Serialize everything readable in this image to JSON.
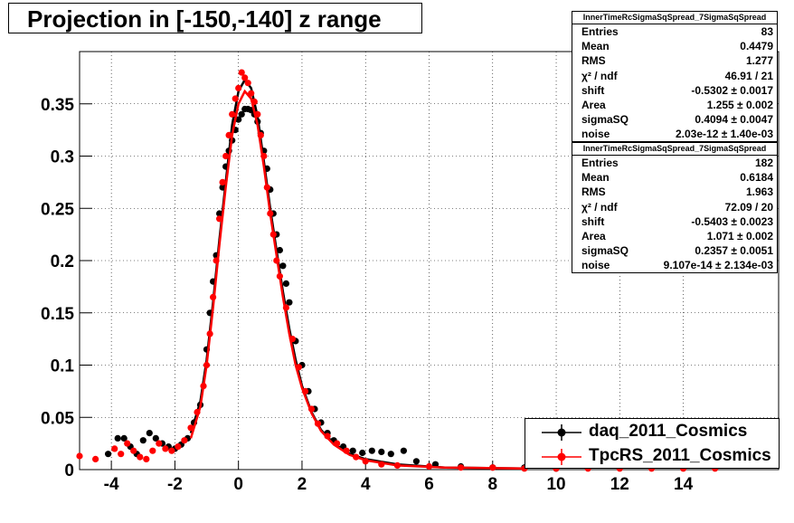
{
  "title": "Projection in [-150,-140] z range",
  "chart_data": {
    "type": "scatter",
    "title": "Projection in [-150,-140] z range",
    "xlabel": "",
    "ylabel": "",
    "xlim": [
      -5,
      17
    ],
    "ylim": [
      0,
      0.4
    ],
    "x_ticks": [
      -4,
      -2,
      0,
      2,
      4,
      6,
      8,
      10,
      12,
      14
    ],
    "x_tick_labels": [
      "-4",
      "-2",
      "0",
      "2",
      "4",
      "6",
      "8",
      "10",
      "12",
      "14"
    ],
    "y_ticks": [
      0.05,
      0.1,
      0.15,
      0.2,
      0.25,
      0.3,
      0.35
    ],
    "y_tick_labels": [
      "0.05",
      "0.1",
      "0.15",
      "0.2",
      "0.25",
      "0.3",
      "0.35"
    ],
    "y_zero_label": "0",
    "grid": true,
    "series": [
      {
        "name": "daq_2011_Cosmics",
        "color": "#000000",
        "points": [
          [
            -4.1,
            0.015
          ],
          [
            -3.8,
            0.03
          ],
          [
            -3.6,
            0.03
          ],
          [
            -3.4,
            0.022
          ],
          [
            -3.2,
            0.015
          ],
          [
            -3.0,
            0.028
          ],
          [
            -2.8,
            0.035
          ],
          [
            -2.6,
            0.03
          ],
          [
            -2.4,
            0.025
          ],
          [
            -2.2,
            0.022
          ],
          [
            -2.0,
            0.02
          ],
          [
            -1.8,
            0.024
          ],
          [
            -1.6,
            0.03
          ],
          [
            -1.4,
            0.045
          ],
          [
            -1.2,
            0.062
          ],
          [
            -1.0,
            0.115
          ],
          [
            -0.9,
            0.15
          ],
          [
            -0.8,
            0.18
          ],
          [
            -0.7,
            0.205
          ],
          [
            -0.6,
            0.245
          ],
          [
            -0.5,
            0.27
          ],
          [
            -0.4,
            0.29
          ],
          [
            -0.3,
            0.305
          ],
          [
            -0.2,
            0.315
          ],
          [
            -0.1,
            0.325
          ],
          [
            0.0,
            0.335
          ],
          [
            0.1,
            0.34
          ],
          [
            0.2,
            0.345
          ],
          [
            0.3,
            0.345
          ],
          [
            0.4,
            0.344
          ],
          [
            0.5,
            0.34
          ],
          [
            0.6,
            0.333
          ],
          [
            0.7,
            0.322
          ],
          [
            0.8,
            0.305
          ],
          [
            0.9,
            0.288
          ],
          [
            1.0,
            0.268
          ],
          [
            1.1,
            0.245
          ],
          [
            1.2,
            0.225
          ],
          [
            1.3,
            0.21
          ],
          [
            1.4,
            0.195
          ],
          [
            1.5,
            0.178
          ],
          [
            1.6,
            0.16
          ],
          [
            1.8,
            0.123
          ],
          [
            2.0,
            0.1
          ],
          [
            2.2,
            0.075
          ],
          [
            2.4,
            0.058
          ],
          [
            2.6,
            0.045
          ],
          [
            2.8,
            0.035
          ],
          [
            3.0,
            0.028
          ],
          [
            3.3,
            0.022
          ],
          [
            3.6,
            0.018
          ],
          [
            3.9,
            0.016
          ],
          [
            4.2,
            0.018
          ],
          [
            4.5,
            0.017
          ],
          [
            4.8,
            0.015
          ],
          [
            5.2,
            0.018
          ],
          [
            5.6,
            0.008
          ],
          [
            6.2,
            0.005
          ],
          [
            7.0,
            0.003
          ],
          [
            8.0,
            0.002
          ],
          [
            9.0,
            0.002
          ],
          [
            10.0,
            0.001
          ]
        ],
        "fit": [
          [
            -1.5,
            0.035
          ],
          [
            -1.2,
            0.065
          ],
          [
            -1.0,
            0.105
          ],
          [
            -0.8,
            0.16
          ],
          [
            -0.6,
            0.22
          ],
          [
            -0.4,
            0.275
          ],
          [
            -0.2,
            0.33
          ],
          [
            0.0,
            0.362
          ],
          [
            0.2,
            0.373
          ],
          [
            0.4,
            0.365
          ],
          [
            0.6,
            0.338
          ],
          [
            0.8,
            0.295
          ],
          [
            1.0,
            0.25
          ],
          [
            1.2,
            0.21
          ],
          [
            1.4,
            0.17
          ],
          [
            1.6,
            0.135
          ],
          [
            1.8,
            0.105
          ],
          [
            2.0,
            0.08
          ],
          [
            2.3,
            0.055
          ],
          [
            2.6,
            0.038
          ],
          [
            3.0,
            0.025
          ],
          [
            3.5,
            0.015
          ],
          [
            4.0,
            0.01
          ],
          [
            5.0,
            0.005
          ],
          [
            6.5,
            0.002
          ],
          [
            9.0,
            0.001
          ]
        ]
      },
      {
        "name": "TpcRS_2011_Cosmics",
        "color": "#ff0000",
        "points": [
          [
            -5.0,
            0.013
          ],
          [
            -4.5,
            0.01
          ],
          [
            -3.9,
            0.02
          ],
          [
            -3.7,
            0.015
          ],
          [
            -3.5,
            0.025
          ],
          [
            -3.3,
            0.018
          ],
          [
            -3.1,
            0.012
          ],
          [
            -2.9,
            0.01
          ],
          [
            -2.7,
            0.018
          ],
          [
            -2.5,
            0.025
          ],
          [
            -2.3,
            0.02
          ],
          [
            -2.1,
            0.018
          ],
          [
            -1.9,
            0.022
          ],
          [
            -1.7,
            0.028
          ],
          [
            -1.5,
            0.04
          ],
          [
            -1.3,
            0.055
          ],
          [
            -1.1,
            0.08
          ],
          [
            -1.0,
            0.1
          ],
          [
            -0.9,
            0.13
          ],
          [
            -0.8,
            0.165
          ],
          [
            -0.7,
            0.2
          ],
          [
            -0.6,
            0.24
          ],
          [
            -0.5,
            0.275
          ],
          [
            -0.4,
            0.3
          ],
          [
            -0.3,
            0.32
          ],
          [
            -0.2,
            0.34
          ],
          [
            -0.1,
            0.355
          ],
          [
            0.0,
            0.365
          ],
          [
            0.1,
            0.38
          ],
          [
            0.2,
            0.375
          ],
          [
            0.3,
            0.37
          ],
          [
            0.4,
            0.36
          ],
          [
            0.5,
            0.352
          ],
          [
            0.6,
            0.34
          ],
          [
            0.7,
            0.32
          ],
          [
            0.8,
            0.3
          ],
          [
            0.9,
            0.27
          ],
          [
            1.0,
            0.245
          ],
          [
            1.1,
            0.225
          ],
          [
            1.2,
            0.2
          ],
          [
            1.3,
            0.185
          ],
          [
            1.5,
            0.155
          ],
          [
            1.7,
            0.125
          ],
          [
            1.9,
            0.098
          ],
          [
            2.1,
            0.075
          ],
          [
            2.3,
            0.058
          ],
          [
            2.5,
            0.044
          ],
          [
            2.8,
            0.032
          ],
          [
            3.1,
            0.025
          ],
          [
            3.4,
            0.018
          ],
          [
            3.7,
            0.012
          ],
          [
            4.0,
            0.008
          ],
          [
            4.5,
            0.005
          ],
          [
            5.0,
            0.004
          ],
          [
            6.0,
            0.003
          ],
          [
            7.0,
            0.002
          ],
          [
            8.0,
            0.002
          ],
          [
            9.0,
            0.001
          ],
          [
            10.0,
            0.001
          ],
          [
            11.0,
            0.001
          ],
          [
            12.0,
            0.001
          ],
          [
            13.0,
            0.001
          ],
          [
            14.0,
            0.001
          ],
          [
            15.0,
            0.001
          ]
        ],
        "fit": [
          [
            -1.5,
            0.03
          ],
          [
            -1.2,
            0.06
          ],
          [
            -1.0,
            0.1
          ],
          [
            -0.8,
            0.155
          ],
          [
            -0.6,
            0.215
          ],
          [
            -0.4,
            0.27
          ],
          [
            -0.2,
            0.32
          ],
          [
            0.0,
            0.35
          ],
          [
            0.2,
            0.362
          ],
          [
            0.4,
            0.355
          ],
          [
            0.6,
            0.33
          ],
          [
            0.8,
            0.29
          ],
          [
            1.0,
            0.245
          ],
          [
            1.2,
            0.205
          ],
          [
            1.4,
            0.165
          ],
          [
            1.6,
            0.13
          ],
          [
            1.8,
            0.1
          ],
          [
            2.0,
            0.078
          ],
          [
            2.3,
            0.054
          ],
          [
            2.6,
            0.037
          ],
          [
            3.0,
            0.024
          ],
          [
            3.5,
            0.014
          ],
          [
            4.0,
            0.009
          ],
          [
            5.0,
            0.004
          ],
          [
            6.5,
            0.002
          ],
          [
            9.0,
            0.001
          ]
        ]
      }
    ]
  },
  "stats_boxes": [
    {
      "header": "InnerTimeRcSigmaSqSpread_7SigmaSqSpread",
      "rows": [
        {
          "key": "Entries",
          "value": "83"
        },
        {
          "key": "Mean",
          "value": "0.4479"
        },
        {
          "key": "RMS",
          "value": "1.277"
        },
        {
          "key": "χ² / ndf",
          "value": "46.91 / 21"
        },
        {
          "key": "shift",
          "value": "-0.5302 ± 0.0017"
        },
        {
          "key": "Area",
          "value": "1.255 ± 0.002"
        },
        {
          "key": "sigmaSQ",
          "value": "0.4094 ± 0.0047"
        },
        {
          "key": "noise",
          "value": "2.03e-12 ± 1.40e-03"
        }
      ]
    },
    {
      "header": "InnerTimeRcSigmaSqSpread_7SigmaSqSpread",
      "rows": [
        {
          "key": "Entries",
          "value": "182"
        },
        {
          "key": "Mean",
          "value": "0.6184"
        },
        {
          "key": "RMS",
          "value": "1.963"
        },
        {
          "key": "χ² / ndf",
          "value": "72.09 / 20"
        },
        {
          "key": "shift",
          "value": "-0.5403 ± 0.0023"
        },
        {
          "key": "Area",
          "value": "1.071 ± 0.002"
        },
        {
          "key": "sigmaSQ",
          "value": "0.2357 ± 0.0051"
        },
        {
          "key": "noise",
          "value": "9.107e-14 ± 2.134e-03"
        }
      ]
    }
  ],
  "legend": [
    {
      "label": "daq_2011_Cosmics",
      "color": "#000000"
    },
    {
      "label": "TpcRS_2011_Cosmics",
      "color": "#ff0000"
    }
  ]
}
